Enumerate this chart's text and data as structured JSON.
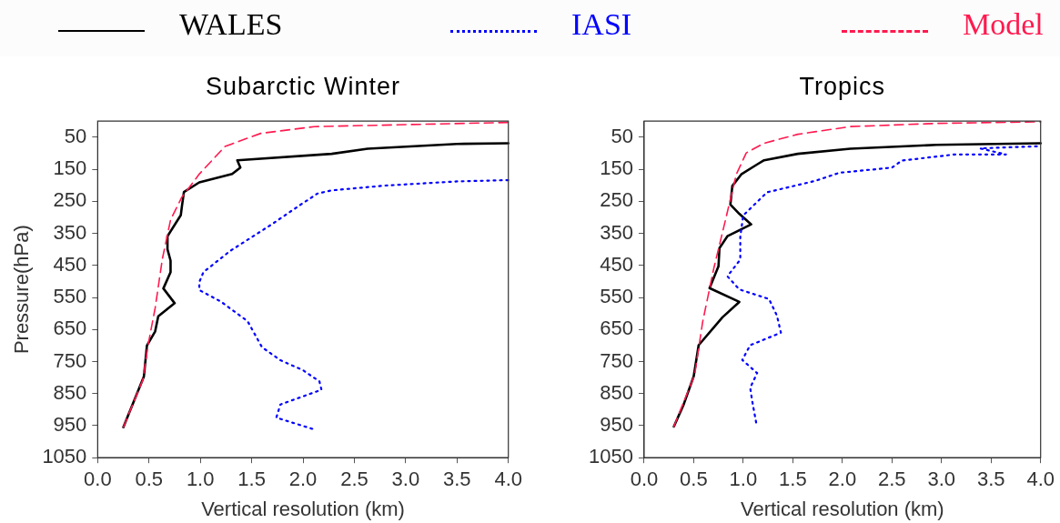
{
  "chart_data": [
    {
      "type": "line",
      "title": "Subarctic Winter",
      "xlabel": "Vertical resolution (km)",
      "ylabel": "Pressure(hPa)",
      "legend": "top",
      "grid": false,
      "marker": "none",
      "xlim": [
        0,
        4
      ],
      "xticks": [
        {
          "value": 0,
          "label": "0.0"
        },
        {
          "value": 0.5,
          "label": "0.5"
        },
        {
          "value": 1,
          "label": "1.0"
        },
        {
          "value": 1.5,
          "label": "1.5"
        },
        {
          "value": 2,
          "label": "2.0"
        },
        {
          "value": 2.5,
          "label": "2.5"
        },
        {
          "value": 3,
          "label": "3.0"
        },
        {
          "value": 3.5,
          "label": "3.5"
        },
        {
          "value": 4,
          "label": "4.0"
        }
      ],
      "ylim": [
        1050,
        0
      ],
      "yticks": [
        50,
        150,
        250,
        350,
        450,
        550,
        650,
        750,
        850,
        950,
        1050
      ],
      "series": [
        {
          "name": "WALES",
          "color": "#000000",
          "line_style": "solid",
          "x": [
            0.25,
            0.45,
            0.48,
            0.56,
            0.59,
            0.75,
            0.64,
            0.71,
            0.71,
            0.68,
            0.68,
            0.81,
            0.82,
            0.84,
            0.99,
            1.31,
            1.39,
            1.36,
            2.28,
            2.63,
            3.5,
            4.0
          ],
          "values": [
            955,
            797,
            700,
            656,
            609,
            568,
            522,
            471,
            435,
            400,
            359,
            293,
            267,
            221,
            191,
            165,
            145,
            122,
            102,
            86,
            71,
            69
          ]
        },
        {
          "name": "IASI",
          "color": "#0000ff",
          "line_style": "dotted",
          "x": [
            2.09,
            1.74,
            1.78,
            2.18,
            2.16,
            2.0,
            1.78,
            1.6,
            1.46,
            1.2,
            0.99,
            0.99,
            1.03,
            1.29,
            1.69,
            1.97,
            2.14,
            2.28,
            2.8,
            3.5,
            4.0
          ],
          "values": [
            960,
            925,
            884,
            838,
            812,
            777,
            746,
            705,
            624,
            563,
            527,
            502,
            471,
            405,
            323,
            262,
            226,
            216,
            201,
            188,
            184
          ]
        },
        {
          "name": "Model",
          "color": "#ff1a4f",
          "line_style": "dashed",
          "x": [
            0.25,
            0.44,
            0.49,
            0.56,
            0.63,
            0.71,
            0.82,
            0.99,
            1.24,
            1.59,
            2.11,
            4.0
          ],
          "values": [
            955,
            807,
            700,
            583,
            430,
            308,
            237,
            165,
            79,
            38,
            17,
            4
          ]
        }
      ]
    },
    {
      "type": "line",
      "title": "Tropics",
      "xlabel": "Vertical resolution (km)",
      "grid": false,
      "marker": "none",
      "xlim": [
        0,
        4
      ],
      "xticks": [
        {
          "value": 0,
          "label": "0.0"
        },
        {
          "value": 0.5,
          "label": "0.5"
        },
        {
          "value": 1,
          "label": "1.0"
        },
        {
          "value": 1.5,
          "label": "1.5"
        },
        {
          "value": 2,
          "label": "2.0"
        },
        {
          "value": 2.5,
          "label": "2.5"
        },
        {
          "value": 3,
          "label": "3.0"
        },
        {
          "value": 3.5,
          "label": "3.5"
        },
        {
          "value": 4,
          "label": "4.0"
        }
      ],
      "ylim": [
        1050,
        0
      ],
      "yticks": [
        50,
        150,
        250,
        350,
        450,
        550,
        650,
        750,
        850,
        950,
        1050
      ],
      "series": [
        {
          "color": "#000000",
          "line_style": "solid",
          "x": [
            0.3,
            0.4,
            0.5,
            0.55,
            0.79,
            0.96,
            0.66,
            0.75,
            0.76,
            0.84,
            1.08,
            0.96,
            0.87,
            0.89,
            0.98,
            1.14,
            1.21,
            1.55,
            2.08,
            2.95,
            4.0
          ],
          "values": [
            953,
            883,
            796,
            699,
            612,
            564,
            521,
            453,
            396,
            359,
            322,
            289,
            260,
            202,
            166,
            135,
            122,
            102,
            86,
            74,
            69
          ]
        },
        {
          "color": "#0000ff",
          "line_style": "dotted",
          "x": [
            1.13,
            1.09,
            1.07,
            1.14,
            0.99,
            1.07,
            1.38,
            1.34,
            1.26,
            0.96,
            0.84,
            0.97,
            0.97,
            1.0,
            1.07,
            1.24,
            1.73,
            1.97,
            2.5,
            2.6,
            3.13,
            3.65,
            3.39,
            4.0
          ],
          "values": [
            940,
            873,
            832,
            786,
            745,
            699,
            660,
            607,
            555,
            525,
            484,
            432,
            361,
            294,
            273,
            222,
            186,
            161,
            145,
            123,
            104,
            104,
            85,
            78
          ]
        },
        {
          "color": "#ff1a4f",
          "line_style": "dashed",
          "x": [
            0.3,
            0.51,
            0.59,
            0.7,
            0.82,
            0.93,
            1.03,
            1.21,
            1.55,
            2.08,
            2.95,
            4.0
          ],
          "values": [
            953,
            791,
            627,
            463,
            309,
            166,
            99,
            69,
            41,
            17,
            7,
            2
          ]
        }
      ]
    }
  ]
}
